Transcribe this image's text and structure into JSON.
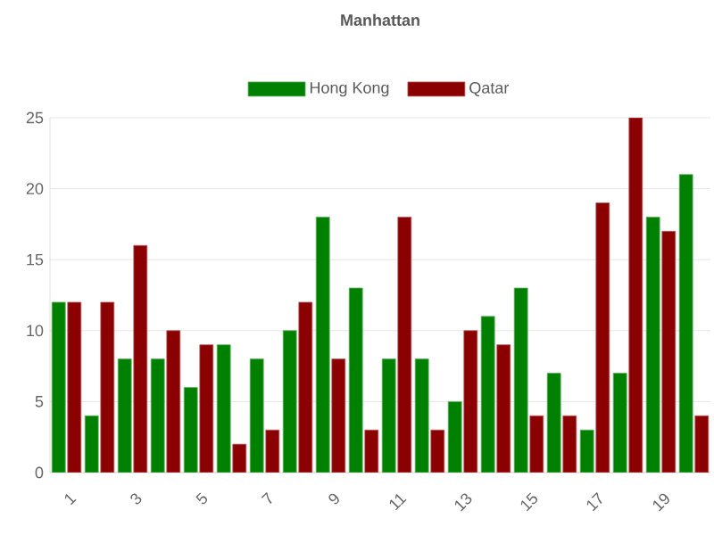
{
  "chart_data": {
    "type": "bar",
    "title": "Manhattan",
    "categories": [
      "1",
      null,
      "3",
      null,
      "5",
      null,
      "7",
      null,
      "9",
      null,
      "11",
      null,
      "13",
      null,
      "15",
      null,
      "17",
      null,
      "19",
      null
    ],
    "series": [
      {
        "name": "Hong Kong",
        "color": "#008000",
        "values": [
          12,
          4,
          8,
          8,
          6,
          9,
          8,
          10,
          18,
          13,
          8,
          8,
          5,
          11,
          13,
          7,
          3,
          7,
          18,
          21
        ]
      },
      {
        "name": "Qatar",
        "color": "#8b0000",
        "values": [
          12,
          12,
          16,
          10,
          9,
          2,
          3,
          12,
          8,
          3,
          18,
          3,
          10,
          9,
          4,
          4,
          19,
          25,
          17,
          4
        ]
      }
    ],
    "ylim": [
      0,
      25
    ],
    "yticks": [
      0,
      5,
      10,
      15,
      20,
      25
    ],
    "grid": "y",
    "legend": "top"
  }
}
